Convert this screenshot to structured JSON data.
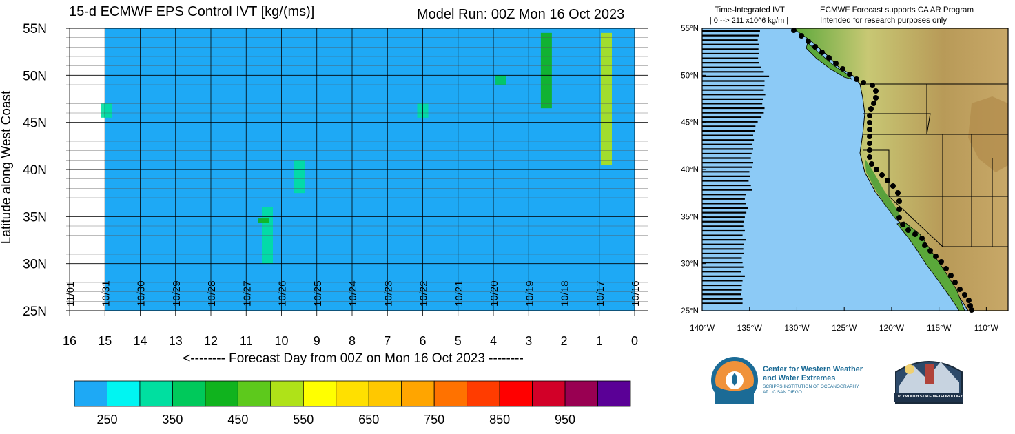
{
  "header": {
    "title": "15-d ECMWF EPS Control IVT [kg/(ms)]",
    "model_run": "Model Run: 00Z Mon 16 Oct 2023"
  },
  "map_panel": {
    "ivt_title": "Time-Integrated IVT",
    "ivt_range": "| 0 --> 211 x10^6 kg/m |",
    "program_line1": "ECMWF Forecast supports CA AR Program",
    "program_line2": "Intended for research purposes only",
    "lat_ticks": [
      "55°N",
      "50°N",
      "45°N",
      "40°N",
      "35°N",
      "30°N",
      "25°N"
    ],
    "lon_ticks": [
      "140°W",
      "135°W",
      "130°W",
      "125°W",
      "120°W",
      "115°W",
      "110°W"
    ],
    "colors": {
      "ocean": "#8ccaf6",
      "land_low": "#5aa83a",
      "land_mid": "#c8c874",
      "land_high": "#b08a4a"
    }
  },
  "logos": {
    "cw3e_line1": "Center for Western Weather",
    "cw3e_line2": "and Water Extremes",
    "cw3e_line3": "SCRIPPS INSTITUTION OF OCEANOGRAPHY",
    "cw3e_line4": "AT UC SAN DIEGO",
    "plymouth": "PLYMOUTH STATE METEOROLOGY"
  },
  "chart_data": {
    "type": "heatmap",
    "title": "15-d ECMWF EPS Control IVT [kg/(ms)]",
    "subtitle": "Model Run: 00Z Mon 16 Oct 2023",
    "xlabel": "<-------- Forecast Day from 00Z on Mon 16 Oct 2023 --------",
    "ylabel": "Latitude along West Coast",
    "x_ticks": [
      "16",
      "15",
      "14",
      "13",
      "12",
      "11",
      "10",
      "9",
      "8",
      "7",
      "6",
      "5",
      "4",
      "3",
      "2",
      "1",
      "0"
    ],
    "date_labels": [
      "11/01",
      "10/31",
      "10/30",
      "10/29",
      "10/28",
      "10/27",
      "10/26",
      "10/25",
      "10/24",
      "10/23",
      "10/22",
      "10/21",
      "10/20",
      "10/19",
      "10/18",
      "10/17",
      "10/16"
    ],
    "y_ticks": [
      "55N",
      "50N",
      "45N",
      "40N",
      "35N",
      "30N",
      "25N"
    ],
    "xlim": [
      16,
      0
    ],
    "ylim": [
      25,
      55
    ],
    "background_value_color": "#1ea9f5",
    "colorbar": {
      "labels": [
        "250",
        "350",
        "450",
        "550",
        "650",
        "750",
        "850",
        "950"
      ],
      "colors": [
        "#1ea9f5",
        "#00f5f2",
        "#00dfa0",
        "#00c95b",
        "#10b31e",
        "#5dc91c",
        "#afe218",
        "#ffff00",
        "#ffe000",
        "#ffc800",
        "#ffa500",
        "#ff7200",
        "#ff3c00",
        "#ff0000",
        "#d20028",
        "#990052",
        "#5a0096"
      ]
    },
    "features": [
      {
        "day": 14.95,
        "lat_min": 45.5,
        "lat_max": 47.0,
        "ivt": 320
      },
      {
        "day": 10.4,
        "lat_min": 30.0,
        "lat_max": 36.0,
        "ivt": 330
      },
      {
        "day": 10.5,
        "lat_min": 34.3,
        "lat_max": 34.8,
        "ivt": 430
      },
      {
        "day": 9.5,
        "lat_min": 37.5,
        "lat_max": 41.0,
        "ivt": 340
      },
      {
        "day": 6.0,
        "lat_min": 45.5,
        "lat_max": 47.0,
        "ivt": 330
      },
      {
        "day": 3.8,
        "lat_min": 49.0,
        "lat_max": 50.0,
        "ivt": 350
      },
      {
        "day": 2.5,
        "lat_min": 46.5,
        "lat_max": 54.5,
        "ivt": 420
      },
      {
        "day": 0.8,
        "lat_min": 40.5,
        "lat_max": 54.5,
        "ivt": 520
      }
    ]
  }
}
